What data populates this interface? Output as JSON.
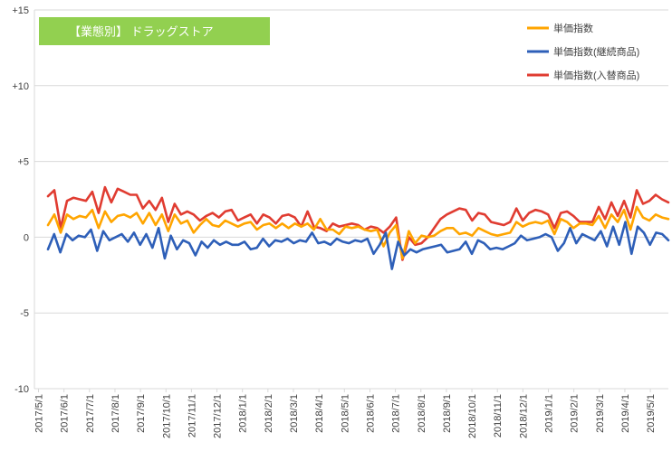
{
  "chart_data": {
    "type": "line",
    "title": "【業態別】 ドラッグストア",
    "xlabel": "",
    "ylabel": "",
    "ylim": [
      -10,
      15
    ],
    "y_ticks": [
      {
        "value": 15,
        "label": "+15"
      },
      {
        "value": 10,
        "label": "+10"
      },
      {
        "value": 5,
        "label": "+5"
      },
      {
        "value": 0,
        "label": "0"
      },
      {
        "value": -5,
        "label": "-5"
      },
      {
        "value": -10,
        "label": "-10"
      }
    ],
    "x_tick_labels": [
      "2017/5/1",
      "2017/6/1",
      "2017/7/1",
      "2017/8/1",
      "2017/9/1",
      "2017/10/1",
      "2017/11/1",
      "2017/12/1",
      "2018/1/1",
      "2018/2/1",
      "2018/3/1",
      "2018/4/1",
      "2018/5/1",
      "2018/6/1",
      "2018/7/1",
      "2018/8/1",
      "2018/9/1",
      "2018/10/1",
      "2018/11/1",
      "2018/12/1",
      "2019/1/1",
      "2019/2/1",
      "2019/3/1",
      "2019/4/1",
      "2019/5/1"
    ],
    "grid": "horizontal",
    "legend_position": "top-right",
    "colors": {
      "orange": "#FFA500",
      "blue": "#2E5FB8",
      "red": "#E03C31",
      "title_bg": "#92D050",
      "grid": "#D9D9D9"
    },
    "series": [
      {
        "name": "単価指数",
        "color": "#FFA500",
        "values": [
          0.8,
          1.5,
          0.3,
          1.5,
          1.2,
          1.4,
          1.3,
          1.8,
          0.6,
          1.7,
          1.0,
          1.4,
          1.5,
          1.3,
          1.6,
          0.9,
          1.6,
          0.8,
          1.5,
          0.4,
          1.5,
          0.9,
          1.1,
          0.3,
          0.8,
          1.2,
          0.8,
          0.7,
          1.1,
          0.9,
          0.7,
          0.9,
          1.0,
          0.5,
          0.8,
          0.9,
          0.6,
          0.9,
          0.6,
          0.9,
          0.7,
          0.9,
          0.5,
          1.2,
          0.5,
          0.5,
          0.2,
          0.7,
          0.6,
          0.7,
          0.5,
          0.4,
          0.5,
          -0.6,
          0.3,
          0.8,
          -1.4,
          0.4,
          -0.4,
          0.1,
          0.0,
          0.1,
          0.4,
          0.6,
          0.6,
          0.2,
          0.3,
          0.1,
          0.6,
          0.4,
          0.2,
          0.1,
          0.2,
          0.3,
          1.0,
          0.7,
          0.9,
          1.0,
          0.9,
          1.1,
          0.2,
          1.2,
          1.0,
          0.6,
          0.9,
          0.9,
          0.8,
          1.4,
          0.6,
          1.5,
          1.0,
          1.8,
          0.5,
          2.0,
          1.3,
          1.1,
          1.5,
          1.3,
          1.2
        ]
      },
      {
        "name": "単価指数(継続商品)",
        "color": "#2E5FB8",
        "values": [
          -0.8,
          0.2,
          -1.0,
          0.2,
          -0.2,
          0.1,
          0.0,
          0.5,
          -0.9,
          0.4,
          -0.2,
          0.0,
          0.2,
          -0.3,
          0.3,
          -0.5,
          0.2,
          -0.7,
          0.6,
          -1.4,
          0.1,
          -0.8,
          -0.2,
          -0.4,
          -1.2,
          -0.3,
          -0.7,
          -0.2,
          -0.5,
          -0.3,
          -0.5,
          -0.5,
          -0.3,
          -0.8,
          -0.7,
          -0.1,
          -0.6,
          -0.2,
          -0.3,
          -0.1,
          -0.4,
          -0.2,
          -0.3,
          0.3,
          -0.4,
          -0.3,
          -0.5,
          -0.1,
          -0.3,
          -0.4,
          -0.2,
          -0.3,
          -0.1,
          -1.1,
          -0.5,
          0.3,
          -2.1,
          -0.3,
          -1.2,
          -0.8,
          -1.0,
          -0.8,
          -0.7,
          -0.6,
          -0.5,
          -1.0,
          -0.9,
          -0.8,
          -0.3,
          -1.1,
          -0.2,
          -0.4,
          -0.8,
          -0.7,
          -0.8,
          -0.6,
          -0.4,
          0.1,
          -0.2,
          -0.1,
          0.0,
          0.2,
          0.0,
          -0.9,
          -0.4,
          0.6,
          -0.4,
          0.2,
          0.0,
          -0.2,
          0.4,
          -0.6,
          0.7,
          -0.5,
          1.0,
          -1.1,
          0.7,
          0.3,
          -0.5,
          0.3,
          0.2,
          -0.2
        ]
      },
      {
        "name": "単価指数(入替商品)",
        "color": "#E03C31",
        "values": [
          2.7,
          3.1,
          0.6,
          2.4,
          2.6,
          2.5,
          2.4,
          3.0,
          1.6,
          3.3,
          2.3,
          3.2,
          3.0,
          2.8,
          2.8,
          1.9,
          2.4,
          1.8,
          2.6,
          1.0,
          2.2,
          1.5,
          1.7,
          1.5,
          1.1,
          1.4,
          1.6,
          1.3,
          1.7,
          1.8,
          1.1,
          1.3,
          1.5,
          0.9,
          1.5,
          1.3,
          0.9,
          1.4,
          1.5,
          1.3,
          0.7,
          1.7,
          0.7,
          0.6,
          0.4,
          0.9,
          0.7,
          0.8,
          0.9,
          0.8,
          0.5,
          0.7,
          0.6,
          0.3,
          0.7,
          1.3,
          -1.5,
          0.0,
          -0.5,
          -0.4,
          0.0,
          0.6,
          1.2,
          1.5,
          1.7,
          1.9,
          1.8,
          1.1,
          1.6,
          1.5,
          1.0,
          0.9,
          0.8,
          1.0,
          1.9,
          1.1,
          1.6,
          1.8,
          1.7,
          1.5,
          0.6,
          1.6,
          1.7,
          1.4,
          1.0,
          1.0,
          1.0,
          2.0,
          1.2,
          2.3,
          1.4,
          2.4,
          1.3,
          3.1,
          2.2,
          2.4,
          2.8,
          2.5,
          2.3
        ]
      }
    ]
  }
}
